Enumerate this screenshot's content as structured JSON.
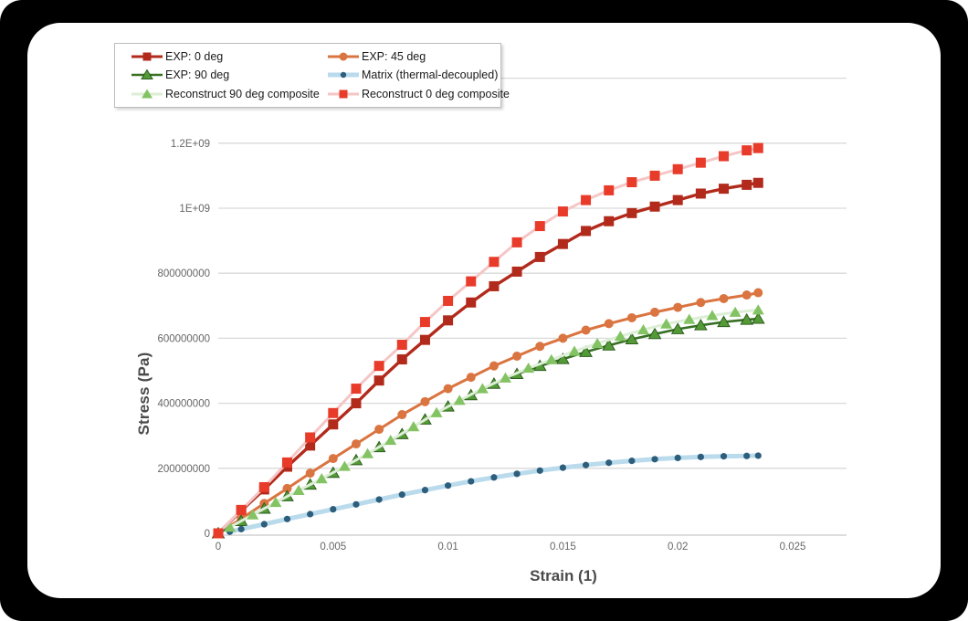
{
  "window": {
    "background_color": "#000000",
    "card_color": "#ffffff"
  },
  "axes": {
    "x_title": "Strain (1)",
    "y_title": "Stress (Pa)",
    "x_tick_labels": [
      "0",
      "0.005",
      "0.01",
      "0.015",
      "0.02",
      "0.025"
    ],
    "y_tick_labels": [
      "0",
      "200000000",
      "400000000",
      "600000000",
      "800000000",
      "1E+09",
      "1.2E+09"
    ]
  },
  "chart_data": {
    "type": "line",
    "title": "",
    "xlabel": "Strain (1)",
    "ylabel": "Stress (Pa)",
    "xlim": [
      0,
      0.0274
    ],
    "ylim": [
      0,
      1400000000.0
    ],
    "x_ticks": [
      0,
      0.005,
      0.01,
      0.015,
      0.02,
      0.025
    ],
    "y_ticks": [
      0,
      200000000.0,
      400000000.0,
      600000000.0,
      800000000.0,
      1000000000.0,
      1200000000.0
    ],
    "grid": true,
    "grid_color": "#d9d9d9",
    "axis_line_color": "#d2d2d2",
    "tick_label_color": "#666666",
    "legend_position": "top-left",
    "series": [
      {
        "name": "EXP: 0 deg",
        "marker": "square",
        "line_color": "#b22a1b",
        "marker_color": "#b22a1b",
        "line_width": 3.4,
        "points": [
          [
            0,
            0
          ],
          [
            0.001,
            70000000.0
          ],
          [
            0.002,
            135000000.0
          ],
          [
            0.003,
            205000000.0
          ],
          [
            0.004,
            270000000.0
          ],
          [
            0.005,
            335000000.0
          ],
          [
            0.006,
            400000000.0
          ],
          [
            0.007,
            470000000.0
          ],
          [
            0.008,
            535000000.0
          ],
          [
            0.009,
            595000000.0
          ],
          [
            0.01,
            655000000.0
          ],
          [
            0.011,
            710000000.0
          ],
          [
            0.012,
            760000000.0
          ],
          [
            0.013,
            805000000.0
          ],
          [
            0.014,
            850000000.0
          ],
          [
            0.015,
            890000000.0
          ],
          [
            0.016,
            930000000.0
          ],
          [
            0.017,
            960000000.0
          ],
          [
            0.018,
            985000000.0
          ],
          [
            0.019,
            1005000000.0
          ],
          [
            0.02,
            1025000000.0
          ],
          [
            0.021,
            1045000000.0
          ],
          [
            0.022,
            1060000000.0
          ],
          [
            0.023,
            1072000000.0
          ],
          [
            0.0235,
            1078000000.0
          ]
        ]
      },
      {
        "name": "EXP: 45 deg",
        "marker": "circle",
        "line_color": "#da7440",
        "marker_color": "#da7440",
        "line_width": 3,
        "points": [
          [
            0,
            0
          ],
          [
            0.001,
            45000000.0
          ],
          [
            0.002,
            92000000.0
          ],
          [
            0.003,
            138000000.0
          ],
          [
            0.004,
            185000000.0
          ],
          [
            0.005,
            230000000.0
          ],
          [
            0.006,
            275000000.0
          ],
          [
            0.007,
            320000000.0
          ],
          [
            0.008,
            365000000.0
          ],
          [
            0.009,
            405000000.0
          ],
          [
            0.01,
            445000000.0
          ],
          [
            0.011,
            480000000.0
          ],
          [
            0.012,
            515000000.0
          ],
          [
            0.013,
            545000000.0
          ],
          [
            0.014,
            575000000.0
          ],
          [
            0.015,
            600000000.0
          ],
          [
            0.016,
            625000000.0
          ],
          [
            0.017,
            645000000.0
          ],
          [
            0.018,
            663000000.0
          ],
          [
            0.019,
            680000000.0
          ],
          [
            0.02,
            695000000.0
          ],
          [
            0.021,
            710000000.0
          ],
          [
            0.022,
            722000000.0
          ],
          [
            0.023,
            733000000.0
          ],
          [
            0.0235,
            740000000.0
          ]
        ]
      },
      {
        "name": "EXP: 90 deg",
        "marker": "triangle",
        "line_color": "#376f24",
        "marker_color": "#549b38",
        "marker_edge_color": "#2c5e1d",
        "line_width": 2.6,
        "points": [
          [
            0,
            0
          ],
          [
            0.001,
            38000000.0
          ],
          [
            0.002,
            76000000.0
          ],
          [
            0.003,
            114000000.0
          ],
          [
            0.004,
            150000000.0
          ],
          [
            0.005,
            186000000.0
          ],
          [
            0.006,
            225000000.0
          ],
          [
            0.007,
            265000000.0
          ],
          [
            0.008,
            305000000.0
          ],
          [
            0.009,
            350000000.0
          ],
          [
            0.01,
            390000000.0
          ],
          [
            0.011,
            425000000.0
          ],
          [
            0.012,
            460000000.0
          ],
          [
            0.013,
            490000000.0
          ],
          [
            0.014,
            515000000.0
          ],
          [
            0.015,
            536000000.0
          ],
          [
            0.016,
            558000000.0
          ],
          [
            0.017,
            578000000.0
          ],
          [
            0.018,
            597000000.0
          ],
          [
            0.019,
            613000000.0
          ],
          [
            0.02,
            628000000.0
          ],
          [
            0.021,
            640000000.0
          ],
          [
            0.022,
            650000000.0
          ],
          [
            0.023,
            657000000.0
          ],
          [
            0.0235,
            660000000.0
          ]
        ]
      },
      {
        "name": "Matrix (thermal-decoupled)",
        "marker": "dot",
        "line_color": "#badbec",
        "marker_color": "#2d5f7d",
        "line_width": 5,
        "points": [
          [
            0.0005,
            5000000.0
          ],
          [
            0.001,
            13000000.0
          ],
          [
            0.002,
            28000000.0
          ],
          [
            0.003,
            44000000.0
          ],
          [
            0.004,
            59000000.0
          ],
          [
            0.005,
            74000000.0
          ],
          [
            0.006,
            89000000.0
          ],
          [
            0.007,
            104000000.0
          ],
          [
            0.008,
            119000000.0
          ],
          [
            0.009,
            133000000.0
          ],
          [
            0.01,
            147000000.0
          ],
          [
            0.011,
            160000000.0
          ],
          [
            0.012,
            172000000.0
          ],
          [
            0.013,
            183000000.0
          ],
          [
            0.014,
            193000000.0
          ],
          [
            0.015,
            202000000.0
          ],
          [
            0.016,
            210000000.0
          ],
          [
            0.017,
            217000000.0
          ],
          [
            0.018,
            223000000.0
          ],
          [
            0.019,
            228000000.0
          ],
          [
            0.02,
            232000000.0
          ],
          [
            0.021,
            235000000.0
          ],
          [
            0.022,
            237000000.0
          ],
          [
            0.023,
            238000000.0
          ],
          [
            0.0235,
            239000000.0
          ]
        ]
      },
      {
        "name": "Reconstruct 90 deg composite",
        "marker": "triangle",
        "line_color": "#ddeed6",
        "marker_color": "#83c363",
        "line_width": 3,
        "points": [
          [
            0.0005,
            19000000.0
          ],
          [
            0.0015,
            57000000.0
          ],
          [
            0.0025,
            95000000.0
          ],
          [
            0.0035,
            132000000.0
          ],
          [
            0.0045,
            168000000.0
          ],
          [
            0.0055,
            206000000.0
          ],
          [
            0.0065,
            245000000.0
          ],
          [
            0.0075,
            286000000.0
          ],
          [
            0.0085,
            328000000.0
          ],
          [
            0.0095,
            371000000.0
          ],
          [
            0.0105,
            409000000.0
          ],
          [
            0.0115,
            445000000.0
          ],
          [
            0.0125,
            478000000.0
          ],
          [
            0.0135,
            508000000.0
          ],
          [
            0.0145,
            534000000.0
          ],
          [
            0.0155,
            560000000.0
          ],
          [
            0.0165,
            584000000.0
          ],
          [
            0.0175,
            606000000.0
          ],
          [
            0.0185,
            626000000.0
          ],
          [
            0.0195,
            644000000.0
          ],
          [
            0.0205,
            658000000.0
          ],
          [
            0.0215,
            670000000.0
          ],
          [
            0.0225,
            680000000.0
          ],
          [
            0.0235,
            687000000.0
          ]
        ]
      },
      {
        "name": "Reconstruct 0 deg composite",
        "marker": "square",
        "line_color": "#f5c6c6",
        "marker_color": "#e83b2a",
        "line_width": 3,
        "points": [
          [
            0,
            0
          ],
          [
            0.001,
            72000000.0
          ],
          [
            0.002,
            142000000.0
          ],
          [
            0.003,
            218000000.0
          ],
          [
            0.004,
            295000000.0
          ],
          [
            0.005,
            370000000.0
          ],
          [
            0.006,
            445000000.0
          ],
          [
            0.007,
            515000000.0
          ],
          [
            0.008,
            580000000.0
          ],
          [
            0.009,
            650000000.0
          ],
          [
            0.01,
            715000000.0
          ],
          [
            0.011,
            775000000.0
          ],
          [
            0.012,
            835000000.0
          ],
          [
            0.013,
            895000000.0
          ],
          [
            0.014,
            945000000.0
          ],
          [
            0.015,
            990000000.0
          ],
          [
            0.016,
            1025000000.0
          ],
          [
            0.017,
            1055000000.0
          ],
          [
            0.018,
            1080000000.0
          ],
          [
            0.019,
            1100000000.0
          ],
          [
            0.02,
            1120000000.0
          ],
          [
            0.021,
            1140000000.0
          ],
          [
            0.022,
            1160000000.0
          ],
          [
            0.023,
            1178000000.0
          ],
          [
            0.0235,
            1185000000.0
          ]
        ]
      }
    ]
  }
}
